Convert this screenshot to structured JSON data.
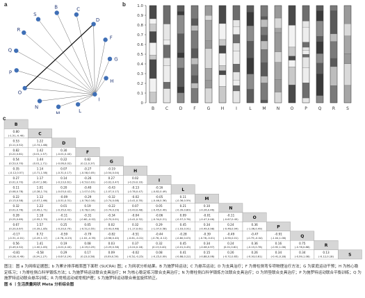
{
  "panels": {
    "a": "a",
    "b": "b",
    "c": "c"
  },
  "network": {
    "nodes": [
      "B",
      "C",
      "D",
      "F",
      "G",
      "H",
      "I",
      "L",
      "M",
      "N",
      "O",
      "P",
      "Q",
      "R",
      "S"
    ],
    "edges": [
      [
        "B",
        "I"
      ],
      [
        "C",
        "I"
      ],
      [
        "D",
        "I"
      ],
      [
        "F",
        "I"
      ],
      [
        "G",
        "I"
      ],
      [
        "H",
        "I"
      ],
      [
        "L",
        "I"
      ],
      [
        "M",
        "I"
      ],
      [
        "N",
        "I"
      ],
      [
        "O",
        "I"
      ],
      [
        "P",
        "I"
      ],
      [
        "Q",
        "I"
      ],
      [
        "R",
        "I"
      ],
      [
        "S",
        "I"
      ],
      [
        "O",
        "D"
      ]
    ]
  },
  "chart_data": {
    "type": "bar",
    "categories": [
      "B",
      "C",
      "D",
      "F",
      "G",
      "H",
      "I",
      "L",
      "M",
      "N",
      "O",
      "P",
      "Q",
      "R",
      "S"
    ],
    "ylim": [
      0,
      1.0
    ],
    "yticks": [
      "0",
      "0.1",
      "0.2",
      "0.3",
      "0.4",
      "0.5",
      "0.6",
      "0.7",
      "0.8",
      "0.9",
      "1.0"
    ],
    "note": ""
  },
  "league": {
    "labels": [
      "B",
      "C",
      "D",
      "F",
      "G",
      "H",
      "I",
      "L",
      "M",
      "N",
      "O",
      "P",
      "Q",
      "R",
      "S"
    ],
    "rows": [
      [],
      [
        [
          "0.80",
          "(-1.51,-0.40)"
        ]
      ],
      [
        [
          "0.53",
          "(0.11,0.52)"
        ],
        [
          "1.22",
          "(-0.74,1.68)"
        ]
      ],
      [
        [
          "0.82",
          "(0.22,0.81)"
        ],
        [
          "1.42",
          "(0.01,1.57)"
        ],
        [
          "0.30",
          "(-0.01,0.40)"
        ]
      ],
      [
        [
          "0.54",
          "(0.53,0.70)"
        ],
        [
          "1.44",
          "(0.01,1.71)"
        ],
        [
          "0.22",
          "(-0.06,0.02)"
        ],
        [
          "0.82",
          "(0.12,0.37)"
        ]
      ],
      [
        [
          "0.35",
          "(-0.12,0.57)"
        ],
        [
          "1.14",
          "(-0.71,1.58)"
        ],
        [
          "0.07",
          "(-0.31,0.17)"
        ],
        [
          "-0.27",
          "(-0.58,0.05)"
        ],
        [
          "-0.19",
          "(-0.54,0.04)"
        ]
      ],
      [
        [
          "0.27",
          "(0.01,0.70)"
        ],
        [
          "1.17",
          "(0.47,1.66)"
        ],
        [
          "0.14",
          "(-0.23,0.61)"
        ],
        [
          "-0.26",
          "(-0.53,0.03)"
        ],
        [
          "0.27",
          "(-0.02,0.47)"
        ],
        [
          "0.02",
          "(-0.29,0.33)"
        ]
      ],
      [
        [
          "0.11",
          "(0.08,0.78)"
        ],
        [
          "1.01",
          "(-0.28,1.74)"
        ],
        [
          "0.20",
          "(-0.03,0.42)"
        ],
        [
          "-0.40",
          "(-1.07,0.23)"
        ],
        [
          "-0.43",
          "(-1.07,0.17)"
        ],
        [
          "-0.13",
          "(-0.78,0.47)"
        ],
        [
          "-0.16",
          "(-0.82,0.49)"
        ]
      ],
      [
        [
          "0.22",
          "(0.13,0.58)"
        ],
        [
          "1.12",
          "(-0.57,1.66)"
        ],
        [
          "-0.09",
          "(-0.51,0.31)"
        ],
        [
          "-0.29",
          "(-0.76,0.16)"
        ],
        [
          "-0.32",
          "(-0.74,0.08)"
        ],
        [
          "-0.02",
          "(-0.41,0.35)"
        ],
        [
          "-0.05",
          "(-0.46,0.36)"
        ],
        [
          "0.11",
          "(-0.36,0.59)"
        ]
      ],
      [
        [
          "0.32",
          "(0.01,0.76)"
        ],
        [
          "1.22",
          "(-0.49,1.71)"
        ],
        [
          "0.01",
          "(-0.35,0.42)"
        ],
        [
          "0.19",
          "(-0.78,0.34)"
        ],
        [
          "-0.22",
          "(-0.74,0.29)"
        ],
        [
          "0.07",
          "(-0.43,0.48)"
        ],
        [
          "0.05",
          "(-0.45,0.49)"
        ],
        [
          "0.21",
          "(-0.39,0.80)"
        ],
        [
          "0.10",
          "(-0.26,0.46)"
        ]
      ],
      [
        [
          "0.28",
          "(0.25,0.69)"
        ],
        [
          "1.18",
          "(-0.55,1.70)"
        ],
        [
          "-0.11",
          "(-0.51,0.25)"
        ],
        [
          "-0.31",
          "(-0.60,-0.02)"
        ],
        [
          "-0.34",
          "(-0.70,0.01)"
        ],
        [
          "-0.04",
          "(-0.41,0.32)"
        ],
        [
          "-0.06",
          "(-0.34,0.21)"
        ],
        [
          "0.09",
          "(-0.57,0.76)"
        ],
        [
          "-0.01",
          "(-0.47,0.46)"
        ],
        [
          "-0.11",
          "(-0.67,0.45)"
        ]
      ],
      [
        [
          "0.67",
          "(0.20,0.67)"
        ],
        [
          "1.57",
          "(-0.39,1.85)"
        ],
        [
          "0.25",
          "(-0.20,0.70)"
        ],
        [
          "0.05",
          "(-0.51,0.55)"
        ],
        [
          "0.02",
          "(-0.43,0.48)"
        ],
        [
          "0.32",
          "(-1.17,0.61)"
        ],
        [
          "0.29",
          "(-1.07,0.58)"
        ],
        [
          "0.45",
          "(-1.03,0.91)"
        ],
        [
          "0.34",
          "(-0.49,0.98)"
        ],
        [
          "0.24",
          "(-0.46,0.94)"
        ],
        [
          "0.36",
          "(-1.06,0.49)"
        ]
      ],
      [
        [
          "-0.17",
          "(-0.31,-0.01)"
        ],
        [
          "0.72",
          "(-0.29,1.17)"
        ],
        [
          "-0.59",
          "(-0.76,-0.23)"
        ],
        [
          "-0.79",
          "(-1.02,-0.35)"
        ],
        [
          "-0.82",
          "(-0.98,0.40)"
        ],
        [
          "-0.51",
          "(-0.61,-0.22)"
        ],
        [
          "-0.44",
          "(-0.76,-0.12)"
        ],
        [
          "-0.28",
          "(-0.80,0.03)"
        ],
        [
          "-0.39",
          "(-0.78,-0.01)"
        ],
        [
          "-0.49",
          "(-0.90,0.01)"
        ],
        [
          "-0.47",
          "(-0.79,-0.04)"
        ],
        [
          "-0.91",
          "(-1.04,1.06)"
        ]
      ],
      [
        [
          "0.56",
          "(0.49,0.52)"
        ],
        [
          "1.41",
          "(-1.00,1.83)"
        ],
        [
          "0.19",
          "(-0.01,0.40)"
        ],
        [
          "0.08",
          "(-0.29,0.29)"
        ],
        [
          "0.03",
          "(-0.29,0.38)"
        ],
        [
          "0.37",
          "(-0.24,0.18)"
        ],
        [
          "0.32",
          "(0.13,0.40)"
        ],
        [
          "0.45",
          "(-0.01,0.45)"
        ],
        [
          "0.34",
          "(-0.08,0.97)"
        ],
        [
          "0.24",
          "(0.01,0.62)"
        ],
        [
          "0.36",
          "(-0.15,0.78)"
        ],
        [
          "0.16",
          "(-0.92,1.06)"
        ],
        [
          "0.75",
          "(-0.78,0.88)"
        ]
      ],
      [
        [
          "-0.81",
          "(-0.28,-0.49)"
        ],
        [
          "-0.58",
          "(0.34,1.27)"
        ],
        [
          "0.29",
          "(-0.67,0.24)"
        ],
        [
          "0.17",
          "(0.23,0.58)"
        ],
        [
          "0.09",
          "(0.09,0.50)"
        ],
        [
          "-0.02",
          "(-0.52,-0.25)"
        ],
        [
          "0.08",
          "(-0.25,0.09)"
        ],
        [
          "0.41",
          "(-0.68,0.22)"
        ],
        [
          "0.15",
          "(-0.88,0.06)"
        ],
        [
          "0.26",
          "(-0.72,0.65)"
        ],
        [
          "0.26",
          "(-0.93,0.61)"
        ],
        [
          "0.34",
          "(-0.41,0.28)"
        ],
        [
          "0.34",
          "(-0.99,1.08)"
        ],
        [
          "0.13",
          "(-0.12,0.18)"
        ]
      ]
    ]
  },
  "caption": {
    "text": "图注：图 a 为网络证据图；b 为累计排序概率图下面积 (SUCRA) 图；c 为网状分析结果。B 为施罗特运动；C 为悬吊运动；D 为支具治疗；F 为脊柱侧弯专项物理治疗方法；G 为家庭运动干预；H 为核心稳定练习；I 为脊柱侧凸科学锻炼方法；L 为施罗特运动联合支具治疗；M 为核心稳定练习联合支具治疗；N 为脊柱侧凸科学锻炼方法联合支具治疗；O 为矫垫联合支具治疗；P 为施罗特运动联合平衡训练；Q 为施罗特运动联合悬吊训练；R 为常规运动或常规护理；S 为施罗特运动联合骨盆旋转矫正。",
    "figure_title": "图 6 丨生活质量网状 Meta 分析综合图"
  }
}
